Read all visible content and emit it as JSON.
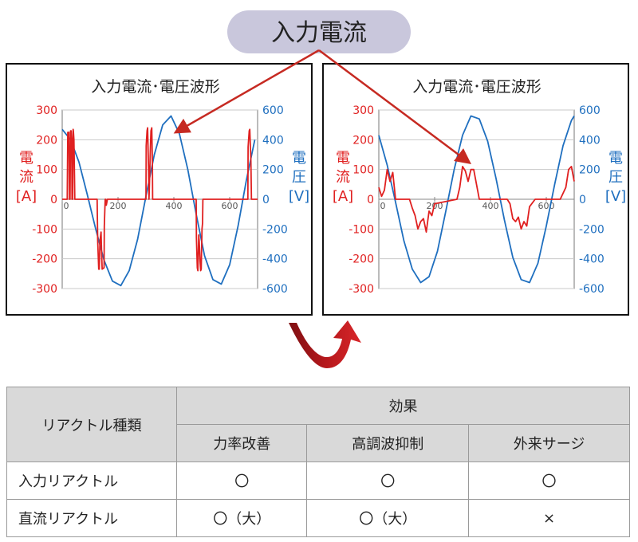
{
  "badge": {
    "label": "入力電流"
  },
  "charts": [
    {
      "title": "入力電流･電圧波形",
      "left_axis_title": [
        "電",
        "流",
        "[A]"
      ],
      "right_axis_title": [
        "電",
        "圧",
        "[V]"
      ],
      "left_ticks": [
        "300",
        "200",
        "100",
        "0",
        "-100",
        "-200",
        "-300"
      ],
      "right_ticks": [
        "600",
        "400",
        "200",
        "0",
        "-200",
        "-400",
        "-600"
      ],
      "x_ticks": [
        "0",
        "200",
        "400",
        "600"
      ]
    },
    {
      "title": "入力電流･電圧波形",
      "left_axis_title": [
        "電",
        "流",
        "[A]"
      ],
      "right_axis_title": [
        "電",
        "圧",
        "[V]"
      ],
      "left_ticks": [
        "300",
        "200",
        "100",
        "0",
        "-100",
        "-200",
        "-300"
      ],
      "right_ticks": [
        "600",
        "400",
        "200",
        "0",
        "-200",
        "-400",
        "-600"
      ],
      "x_ticks": [
        "0",
        "200",
        "400",
        "600"
      ]
    }
  ],
  "chart_data": [
    {
      "type": "line",
      "title": "入力電流･電圧波形",
      "xlim": [
        0,
        700
      ],
      "ylim_left": [
        -300,
        300
      ],
      "ylim_right": [
        -600,
        600
      ],
      "ylabel_left": "電流[A]",
      "ylabel_right": "電圧[V]",
      "series": [
        {
          "axis": "right",
          "color": "#1f6fbf",
          "x": [
            0,
            30,
            60,
            90,
            120,
            150,
            180,
            210,
            240,
            270,
            300,
            330,
            360,
            390,
            420,
            450,
            480,
            510,
            540,
            570,
            600,
            630,
            660,
            690
          ],
          "y": [
            470,
            400,
            250,
            30,
            -200,
            -410,
            -550,
            -580,
            -480,
            -270,
            20,
            300,
            500,
            560,
            440,
            200,
            -100,
            -380,
            -540,
            -570,
            -440,
            -180,
            130,
            400
          ]
        },
        {
          "axis": "left",
          "color": "#e02020",
          "x": [
            0,
            18,
            20,
            24,
            26,
            28,
            30,
            32,
            34,
            35,
            37,
            39,
            40,
            42,
            44,
            45,
            125,
            127,
            131,
            133,
            135,
            139,
            141,
            143,
            150,
            151,
            154,
            156,
            158,
            162,
            163,
            165,
            300,
            301,
            304,
            306,
            309,
            311,
            312,
            316,
            318,
            321,
            323,
            324,
            480,
            481,
            484,
            486,
            489,
            491,
            494,
            496,
            498,
            501,
            503,
            504,
            665,
            666,
            670,
            672,
            676,
            678,
            680,
            700
          ],
          "y": [
            0,
            0,
            225,
            225,
            0,
            0,
            230,
            230,
            200,
            0,
            0,
            235,
            230,
            200,
            80,
            0,
            0,
            -140,
            -235,
            -235,
            -140,
            -110,
            -170,
            -235,
            -230,
            -90,
            0,
            0,
            -20,
            0,
            0,
            0,
            0,
            180,
            230,
            240,
            110,
            0,
            30,
            175,
            230,
            240,
            120,
            0,
            0,
            -130,
            -230,
            -240,
            -120,
            -140,
            -210,
            -240,
            -235,
            -100,
            -80,
            0,
            0,
            175,
            230,
            235,
            130,
            0,
            0,
            0
          ]
        }
      ]
    },
    {
      "type": "line",
      "title": "入力電流･電圧波形",
      "xlim": [
        0,
        700
      ],
      "ylim_left": [
        -300,
        300
      ],
      "ylim_right": [
        -600,
        600
      ],
      "ylabel_left": "電流[A]",
      "ylabel_right": "電圧[V]",
      "series": [
        {
          "axis": "right",
          "color": "#1f6fbf",
          "x": [
            0,
            30,
            60,
            90,
            120,
            150,
            180,
            210,
            240,
            270,
            300,
            330,
            360,
            390,
            420,
            450,
            480,
            510,
            540,
            570,
            600,
            630,
            660,
            690,
            700
          ],
          "y": [
            430,
            230,
            -20,
            -280,
            -470,
            -560,
            -520,
            -350,
            -80,
            200,
            430,
            560,
            540,
            390,
            140,
            -140,
            -390,
            -540,
            -560,
            -430,
            -180,
            100,
            360,
            530,
            560
          ]
        },
        {
          "axis": "left",
          "color": "#e02020",
          "x": [
            0,
            10,
            20,
            30,
            40,
            50,
            60,
            70,
            80,
            110,
            120,
            130,
            140,
            150,
            160,
            170,
            180,
            190,
            200,
            280,
            290,
            300,
            310,
            320,
            330,
            340,
            350,
            360,
            370,
            390,
            400,
            460,
            470,
            480,
            490,
            500,
            510,
            520,
            530,
            540,
            560,
            600,
            620,
            650,
            670,
            680,
            690,
            700
          ],
          "y": [
            40,
            10,
            30,
            100,
            60,
            90,
            0,
            0,
            0,
            0,
            -30,
            -55,
            -100,
            -75,
            -65,
            -110,
            -40,
            -55,
            -15,
            0,
            40,
            110,
            95,
            60,
            100,
            100,
            50,
            0,
            0,
            0,
            0,
            0,
            -15,
            -65,
            -75,
            -60,
            -100,
            -75,
            -90,
            -25,
            0,
            0,
            0,
            0,
            40,
            100,
            110,
            60
          ]
        }
      ]
    }
  ],
  "table": {
    "type_header": "リアクトル種類",
    "effect_header": "効果",
    "sub_headers": [
      "力率改善",
      "高調波抑制",
      "外来サージ"
    ],
    "rows": [
      {
        "label": "入力リアクトル",
        "values": [
          "〇",
          "〇",
          "〇"
        ]
      },
      {
        "label": "直流リアクトル",
        "values": [
          "〇（大）",
          "〇（大）",
          "×"
        ]
      }
    ]
  },
  "colors": {
    "current": "#e02020",
    "voltage": "#1f6fbf",
    "arrow": "#c62a22",
    "badge": "#c9c7dc"
  }
}
